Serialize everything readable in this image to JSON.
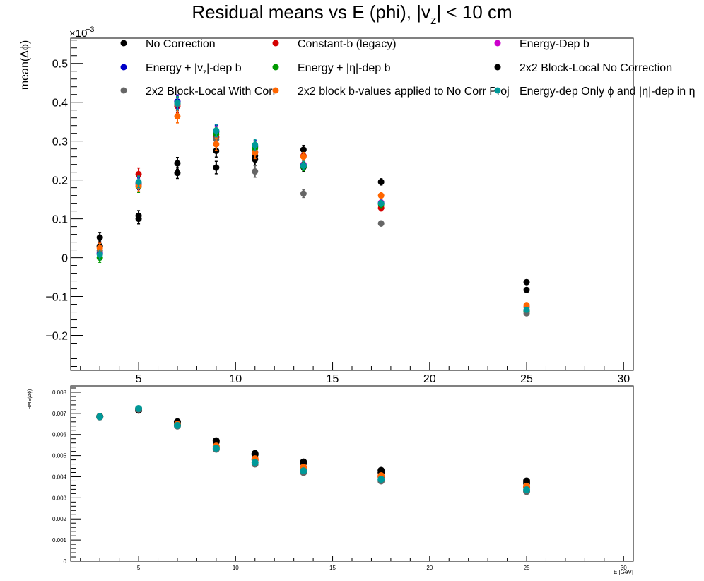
{
  "title": {
    "pre": "Residual means vs E (phi), |v",
    "sub": "z",
    "post": "| < 10 cm"
  },
  "chart_data": [
    {
      "id": "top",
      "type": "scatter",
      "ylabel": "mean(Δϕ)",
      "exponent_label": "×10",
      "exponent_power": "−3",
      "xlim": [
        1.5,
        30.5
      ],
      "ylim": [
        -0.29,
        0.565
      ],
      "x_ticks": [
        "5",
        "10",
        "15",
        "20",
        "25",
        "30"
      ],
      "y_ticks": [
        "−0.2",
        "−0.1",
        "0",
        "0.1",
        "0.2",
        "0.3",
        "0.4",
        "0.5"
      ],
      "legend_placement": "top",
      "series": [
        {
          "name": "No Correction",
          "color": "#000000",
          "points": [
            [
              3,
              0.052,
              0.013
            ],
            [
              5,
              0.108,
              0.013
            ],
            [
              7,
              0.218,
              0.014
            ],
            [
              9,
              0.232,
              0.016
            ],
            [
              11,
              0.262,
              0.017
            ],
            [
              13.5,
              0.233,
              0.011
            ],
            [
              17.5,
              0.195,
              0.008
            ],
            [
              25,
              -0.063,
              0.005
            ]
          ]
        },
        {
          "name": "Constant-b (legacy)",
          "color": "#d40000",
          "points": [
            [
              3,
              0.028,
              0.012
            ],
            [
              5,
              0.215,
              0.016
            ],
            [
              7,
              0.39,
              0.017
            ],
            [
              9,
              0.31,
              0.016
            ],
            [
              11,
              0.272,
              0.015
            ],
            [
              13.5,
              0.262,
              0.011
            ],
            [
              17.5,
              0.128,
              0.008
            ],
            [
              25,
              -0.127,
              0.005
            ]
          ]
        },
        {
          "name": "Energy-Dep b",
          "color": "#cc00cc",
          "points": [
            [
              3,
              0.012,
              0.012
            ],
            [
              5,
              0.19,
              0.015
            ],
            [
              7,
              0.4,
              0.017
            ],
            [
              9,
              0.323,
              0.016
            ],
            [
              11,
              0.285,
              0.015
            ],
            [
              13.5,
              0.24,
              0.011
            ],
            [
              17.5,
              0.142,
              0.008
            ],
            [
              25,
              -0.135,
              0.005
            ]
          ]
        },
        {
          "name": "Energy + |v_z|-dep b",
          "color": "#0000c8",
          "points": [
            [
              3,
              0.01,
              0.012
            ],
            [
              5,
              0.19,
              0.015
            ],
            [
              7,
              0.402,
              0.017
            ],
            [
              9,
              0.325,
              0.016
            ],
            [
              11,
              0.287,
              0.015
            ],
            [
              13.5,
              0.238,
              0.011
            ],
            [
              17.5,
              0.14,
              0.008
            ],
            [
              25,
              -0.136,
              0.005
            ]
          ]
        },
        {
          "name": "Energy + |η|-dep b",
          "color": "#009900",
          "points": [
            [
              3,
              0.0,
              0.012
            ],
            [
              5,
              0.183,
              0.015
            ],
            [
              7,
              0.396,
              0.017
            ],
            [
              9,
              0.318,
              0.016
            ],
            [
              11,
              0.282,
              0.015
            ],
            [
              13.5,
              0.235,
              0.011
            ],
            [
              17.5,
              0.137,
              0.008
            ],
            [
              25,
              -0.138,
              0.005
            ]
          ]
        },
        {
          "name": "2x2 Block-Local No Correction",
          "color": "#000000",
          "points": [
            [
              3,
              0.03,
              0.013
            ],
            [
              5,
              0.1,
              0.013
            ],
            [
              7,
              0.243,
              0.015
            ],
            [
              9,
              0.275,
              0.016
            ],
            [
              11,
              0.253,
              0.016
            ],
            [
              13.5,
              0.278,
              0.011
            ],
            [
              17.5,
              0.195,
              0.008
            ],
            [
              25,
              -0.083,
              0.005
            ]
          ]
        },
        {
          "name": "2x2 Block-Local With Corr",
          "color": "#666666",
          "points": [
            [
              3,
              0.018,
              0.012
            ],
            [
              5,
              0.193,
              0.015
            ],
            [
              7,
              0.395,
              0.017
            ],
            [
              9,
              0.305,
              0.016
            ],
            [
              11,
              0.222,
              0.015
            ],
            [
              13.5,
              0.165,
              0.01
            ],
            [
              17.5,
              0.088,
              0.007
            ],
            [
              25,
              -0.143,
              0.005
            ]
          ]
        },
        {
          "name": "2x2 block b-values applied to No Corr Proj",
          "color": "#ff6600",
          "points": [
            [
              3,
              0.025,
              0.012
            ],
            [
              5,
              0.185,
              0.015
            ],
            [
              7,
              0.364,
              0.017
            ],
            [
              9,
              0.292,
              0.016
            ],
            [
              11,
              0.27,
              0.015
            ],
            [
              13.5,
              0.26,
              0.011
            ],
            [
              17.5,
              0.16,
              0.008
            ],
            [
              25,
              -0.122,
              0.005
            ]
          ]
        },
        {
          "name": "Energy-dep Only ϕ and |η|-dep in η",
          "color": "#009999",
          "points": [
            [
              3,
              0.008,
              0.012
            ],
            [
              5,
              0.195,
              0.015
            ],
            [
              7,
              0.398,
              0.017
            ],
            [
              9,
              0.327,
              0.016
            ],
            [
              11,
              0.29,
              0.015
            ],
            [
              13.5,
              0.237,
              0.011
            ],
            [
              17.5,
              0.14,
              0.008
            ],
            [
              25,
              -0.134,
              0.005
            ]
          ]
        }
      ]
    },
    {
      "id": "bottom",
      "type": "scatter",
      "ylabel": "RMS(Δϕ)",
      "xlabel": "E [GeV]",
      "xlim": [
        1.5,
        30.5
      ],
      "ylim": [
        0,
        0.0083
      ],
      "x_ticks": [
        "5",
        "10",
        "15",
        "20",
        "25",
        "30"
      ],
      "y_ticks": [
        "0",
        "0.001",
        "0.002",
        "0.003",
        "0.004",
        "0.005",
        "0.006",
        "0.007",
        "0.008"
      ],
      "series": [
        {
          "name": "No Correction",
          "color": "#000000",
          "points": [
            [
              3,
              0.00685
            ],
            [
              5,
              0.00715
            ],
            [
              7,
              0.0066
            ],
            [
              9,
              0.0057
            ],
            [
              11,
              0.0051
            ],
            [
              13.5,
              0.0047
            ],
            [
              17.5,
              0.0043
            ],
            [
              25,
              0.0038
            ]
          ]
        },
        {
          "name": "2x2 Block-Local No Correction",
          "color": "#000000",
          "points": [
            [
              3,
              0.00685
            ],
            [
              5,
              0.0072
            ],
            [
              7,
              0.0065
            ],
            [
              9,
              0.00565
            ],
            [
              11,
              0.00505
            ],
            [
              13.5,
              0.00465
            ],
            [
              17.5,
              0.0042
            ],
            [
              25,
              0.0037
            ]
          ]
        },
        {
          "name": "Constant-b (legacy)",
          "color": "#d40000",
          "points": [
            [
              3,
              0.00684
            ],
            [
              5,
              0.0072
            ],
            [
              7,
              0.00645
            ],
            [
              9,
              0.0054
            ],
            [
              11,
              0.0048
            ],
            [
              13.5,
              0.0044
            ],
            [
              17.5,
              0.004
            ],
            [
              25,
              0.0035
            ]
          ]
        },
        {
          "name": "2x2 block b-values applied to No Corr Proj",
          "color": "#ff6600",
          "points": [
            [
              3,
              0.00684
            ],
            [
              5,
              0.00722
            ],
            [
              7,
              0.00648
            ],
            [
              9,
              0.00545
            ],
            [
              11,
              0.00485
            ],
            [
              13.5,
              0.00445
            ],
            [
              17.5,
              0.00405
            ],
            [
              25,
              0.00355
            ]
          ]
        },
        {
          "name": "2x2 Block-Local With Corr",
          "color": "#666666",
          "points": [
            [
              3,
              0.00683
            ],
            [
              5,
              0.0072
            ],
            [
              7,
              0.0064
            ],
            [
              9,
              0.0053
            ],
            [
              11,
              0.0046
            ],
            [
              13.5,
              0.0042
            ],
            [
              17.5,
              0.0038
            ],
            [
              25,
              0.0033
            ]
          ]
        },
        {
          "name": "Energy-dep Only ϕ and |η|-dep in η",
          "color": "#009999",
          "points": [
            [
              3,
              0.00684
            ],
            [
              5,
              0.00723
            ],
            [
              7,
              0.00643
            ],
            [
              9,
              0.00535
            ],
            [
              11,
              0.00468
            ],
            [
              13.5,
              0.00428
            ],
            [
              17.5,
              0.00388
            ],
            [
              25,
              0.00338
            ]
          ]
        }
      ]
    }
  ],
  "legend": [
    {
      "label": "No Correction",
      "color": "#000000"
    },
    {
      "label": "Constant-b (legacy)",
      "color": "#d40000"
    },
    {
      "label": "Energy-Dep b",
      "color": "#cc00cc"
    },
    {
      "label_pre": "Energy + |v",
      "label_sub": "z",
      "label_post": "|-dep b",
      "color": "#0000c8"
    },
    {
      "label": "Energy + |η|-dep b",
      "color": "#009900"
    },
    {
      "label": "2x2 Block-Local No Correction",
      "color": "#000000"
    },
    {
      "label": "2x2 Block-Local With Corr",
      "color": "#666666"
    },
    {
      "label": "2x2 block b-values applied to No Corr Proj",
      "color": "#ff6600"
    },
    {
      "label": "Energy-dep Only ϕ and |η|-dep in η",
      "color": "#009999"
    }
  ]
}
